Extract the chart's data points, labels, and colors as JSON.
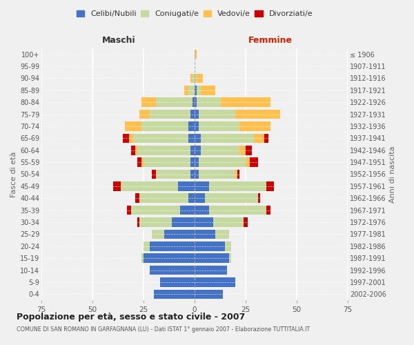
{
  "age_groups": [
    "0-4",
    "5-9",
    "10-14",
    "15-19",
    "20-24",
    "25-29",
    "30-34",
    "35-39",
    "40-44",
    "45-49",
    "50-54",
    "55-59",
    "60-64",
    "65-69",
    "70-74",
    "75-79",
    "80-84",
    "85-89",
    "90-94",
    "95-99",
    "100+"
  ],
  "birth_years": [
    "2002-2006",
    "1997-2001",
    "1992-1996",
    "1987-1991",
    "1982-1986",
    "1977-1981",
    "1972-1976",
    "1967-1971",
    "1962-1966",
    "1957-1961",
    "1952-1956",
    "1947-1951",
    "1942-1946",
    "1937-1941",
    "1932-1936",
    "1927-1931",
    "1922-1926",
    "1917-1921",
    "1912-1916",
    "1907-1911",
    "≤ 1906"
  ],
  "male_celibi": [
    20,
    17,
    22,
    25,
    22,
    15,
    11,
    7,
    3,
    8,
    2,
    2,
    2,
    3,
    3,
    2,
    1,
    0,
    0,
    0,
    0
  ],
  "male_coniugati": [
    0,
    0,
    0,
    1,
    3,
    6,
    16,
    24,
    24,
    28,
    17,
    23,
    26,
    27,
    23,
    20,
    18,
    3,
    1,
    0,
    0
  ],
  "male_vedovi": [
    0,
    0,
    0,
    0,
    0,
    0,
    0,
    0,
    0,
    0,
    0,
    1,
    1,
    2,
    8,
    5,
    7,
    2,
    1,
    0,
    0
  ],
  "male_divorziati": [
    0,
    0,
    0,
    0,
    0,
    0,
    1,
    2,
    2,
    4,
    2,
    2,
    2,
    3,
    0,
    0,
    0,
    0,
    0,
    0,
    0
  ],
  "female_celibi": [
    14,
    20,
    16,
    17,
    15,
    10,
    9,
    7,
    5,
    7,
    2,
    2,
    3,
    3,
    2,
    2,
    1,
    1,
    0,
    0,
    0
  ],
  "female_coniugati": [
    0,
    0,
    0,
    1,
    3,
    7,
    15,
    28,
    26,
    28,
    18,
    23,
    19,
    26,
    20,
    18,
    12,
    2,
    1,
    0,
    0
  ],
  "female_vedovi": [
    0,
    0,
    0,
    0,
    0,
    0,
    0,
    0,
    0,
    0,
    1,
    2,
    3,
    5,
    15,
    22,
    24,
    7,
    3,
    0,
    1
  ],
  "female_divorziati": [
    0,
    0,
    0,
    0,
    0,
    0,
    2,
    2,
    1,
    4,
    1,
    4,
    3,
    2,
    0,
    0,
    0,
    0,
    0,
    0,
    0
  ],
  "colors": {
    "celibi": "#4472c4",
    "coniugati": "#c5d9a0",
    "vedovi": "#ffc04d",
    "divorziati": "#cc0000"
  },
  "title": "Popolazione per età, sesso e stato civile - 2007",
  "subtitle": "COMUNE DI SAN ROMANO IN GARFAGNANA (LU) - Dati ISTAT 1° gennaio 2007 - Elaborazione TUTTITALIA.IT",
  "xlabel_left": "Maschi",
  "xlabel_right": "Femmine",
  "ylabel_left": "Fasce di età",
  "ylabel_right": "Anni di nascita",
  "xlim": 75,
  "background_color": "#f0f0f0",
  "legend_labels": [
    "Celibi/Nubili",
    "Coniugati/e",
    "Vedovi/e",
    "Divorziati/e"
  ]
}
